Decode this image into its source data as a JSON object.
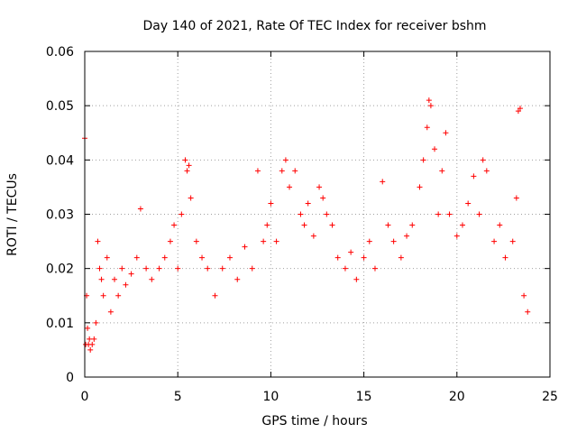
{
  "chart_data": {
    "type": "scatter",
    "title": "Day 140 of 2021, Rate Of TEC Index for receiver bshm",
    "xlabel": "GPS time / hours",
    "ylabel": "ROTI / TECUs",
    "xlim": [
      0,
      25
    ],
    "ylim": [
      0,
      0.06
    ],
    "x_ticks": [
      0,
      5,
      10,
      15,
      20,
      25
    ],
    "x_tick_labels": [
      "0",
      "5",
      "10",
      "15",
      "20",
      "25"
    ],
    "y_ticks": [
      0,
      0.01,
      0.02,
      0.03,
      0.04,
      0.05,
      0.06
    ],
    "y_tick_labels": [
      "0",
      "0.01",
      "0.02",
      "0.03",
      "0.04",
      "0.05",
      "0.06"
    ],
    "grid": true,
    "marker": "plus",
    "color": "#ff0000",
    "series": [
      {
        "x": [
          0.0,
          0.05,
          0.1,
          0.15,
          0.2,
          0.25,
          0.3,
          0.4,
          0.5,
          0.6,
          0.7,
          0.8,
          0.9,
          1.0,
          1.2,
          1.4,
          1.6,
          1.8,
          2.0,
          2.2,
          2.5,
          2.8,
          3.0,
          3.3,
          3.6,
          4.0,
          4.3,
          4.6,
          4.8,
          5.0,
          5.2,
          5.4,
          5.5,
          5.6,
          5.7,
          6.0,
          6.3,
          6.6,
          7.0,
          7.4,
          7.8,
          8.2,
          8.6,
          9.0,
          9.3,
          9.6,
          9.8,
          10.0,
          10.3,
          10.6,
          10.8,
          11.0,
          11.3,
          11.6,
          11.8,
          12.0,
          12.3,
          12.6,
          12.8,
          13.0,
          13.3,
          13.6,
          14.0,
          14.3,
          14.6,
          15.0,
          15.3,
          15.6,
          16.0,
          16.3,
          16.6,
          17.0,
          17.3,
          17.6,
          18.0,
          18.2,
          18.4,
          18.5,
          18.6,
          18.8,
          19.0,
          19.2,
          19.4,
          19.6,
          20.0,
          20.3,
          20.6,
          20.9,
          21.2,
          21.4,
          21.6,
          22.0,
          22.3,
          22.6,
          23.0,
          23.2,
          23.3,
          23.4,
          23.6,
          23.8
        ],
        "y": [
          0.044,
          0.006,
          0.015,
          0.009,
          0.006,
          0.007,
          0.005,
          0.006,
          0.007,
          0.01,
          0.025,
          0.02,
          0.018,
          0.015,
          0.022,
          0.012,
          0.018,
          0.015,
          0.02,
          0.017,
          0.019,
          0.022,
          0.031,
          0.02,
          0.018,
          0.02,
          0.022,
          0.025,
          0.028,
          0.02,
          0.03,
          0.04,
          0.038,
          0.039,
          0.033,
          0.025,
          0.022,
          0.02,
          0.015,
          0.02,
          0.022,
          0.018,
          0.024,
          0.02,
          0.038,
          0.025,
          0.028,
          0.032,
          0.025,
          0.038,
          0.04,
          0.035,
          0.038,
          0.03,
          0.028,
          0.032,
          0.026,
          0.035,
          0.033,
          0.03,
          0.028,
          0.022,
          0.02,
          0.023,
          0.018,
          0.022,
          0.025,
          0.02,
          0.036,
          0.028,
          0.025,
          0.022,
          0.026,
          0.028,
          0.035,
          0.04,
          0.046,
          0.051,
          0.05,
          0.042,
          0.03,
          0.038,
          0.045,
          0.03,
          0.026,
          0.028,
          0.032,
          0.037,
          0.03,
          0.04,
          0.038,
          0.025,
          0.028,
          0.022,
          0.025,
          0.033,
          0.049,
          0.0495,
          0.015,
          0.012
        ]
      }
    ]
  }
}
